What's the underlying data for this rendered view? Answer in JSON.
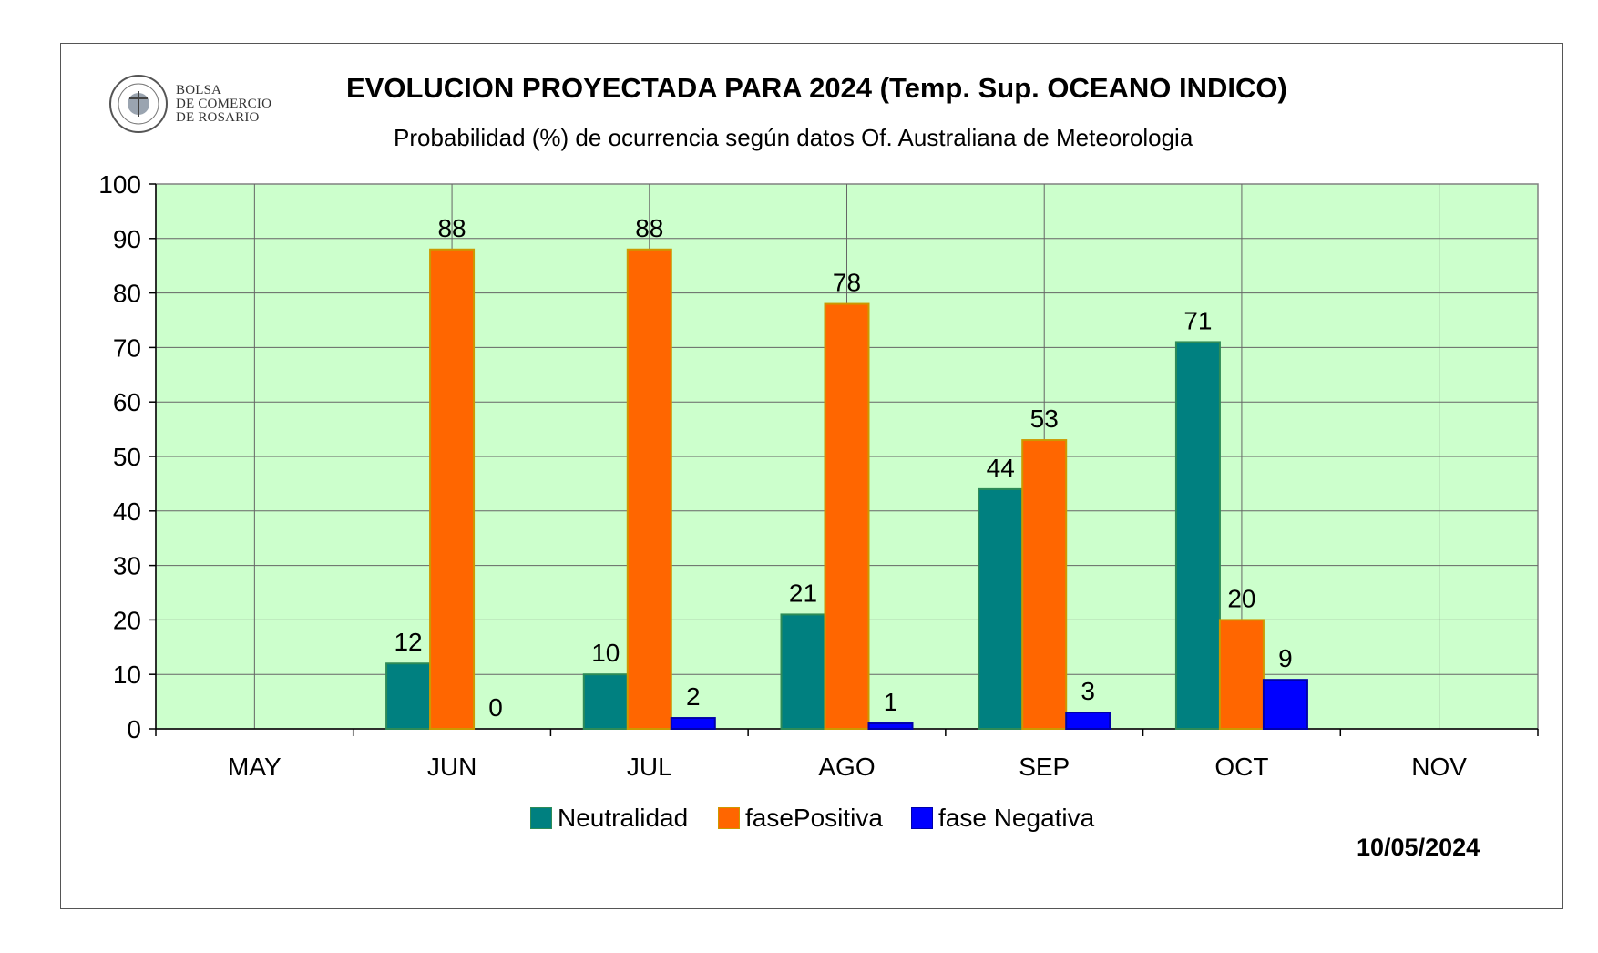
{
  "header": {
    "logo_lines": [
      "BOLSA",
      "DE COMERCIO",
      "DE ROSARIO"
    ],
    "logo_ring_text": "BOLSA DE COMERCIO DE ROSARIO",
    "title": "EVOLUCION PROYECTADA PARA 2024 (Temp. Sup. OCEANO INDICO)",
    "subtitle": "Probabilidad (%) de ocurrencia según datos Of. Australiana de Meteorologia",
    "date": "10/05/2024"
  },
  "chart_data": {
    "type": "bar",
    "title": "EVOLUCION PROYECTADA PARA 2024 (Temp. Sup. OCEANO INDICO)",
    "subtitle": "Probabilidad (%) de ocurrencia según datos Of. Australiana de Meteorologia",
    "categories": [
      "MAY",
      "JUN",
      "JUL",
      "AGO",
      "SEP",
      "OCT",
      "NOV"
    ],
    "series": [
      {
        "name": "Neutralidad",
        "color": "#008080",
        "values": [
          null,
          12,
          10,
          21,
          44,
          71,
          null
        ]
      },
      {
        "name": "fasePositiva",
        "color": "#FF6600",
        "values": [
          null,
          88,
          88,
          78,
          53,
          20,
          null
        ]
      },
      {
        "name": "fase Negativa",
        "color": "#0000FF",
        "values": [
          null,
          0,
          2,
          1,
          3,
          9,
          null
        ]
      }
    ],
    "ylim": [
      0,
      100
    ],
    "yticks": [
      0,
      10,
      20,
      30,
      40,
      50,
      60,
      70,
      80,
      90,
      100
    ],
    "grid": true,
    "plot_background": "#CCFFCC",
    "legend_position": "bottom"
  }
}
